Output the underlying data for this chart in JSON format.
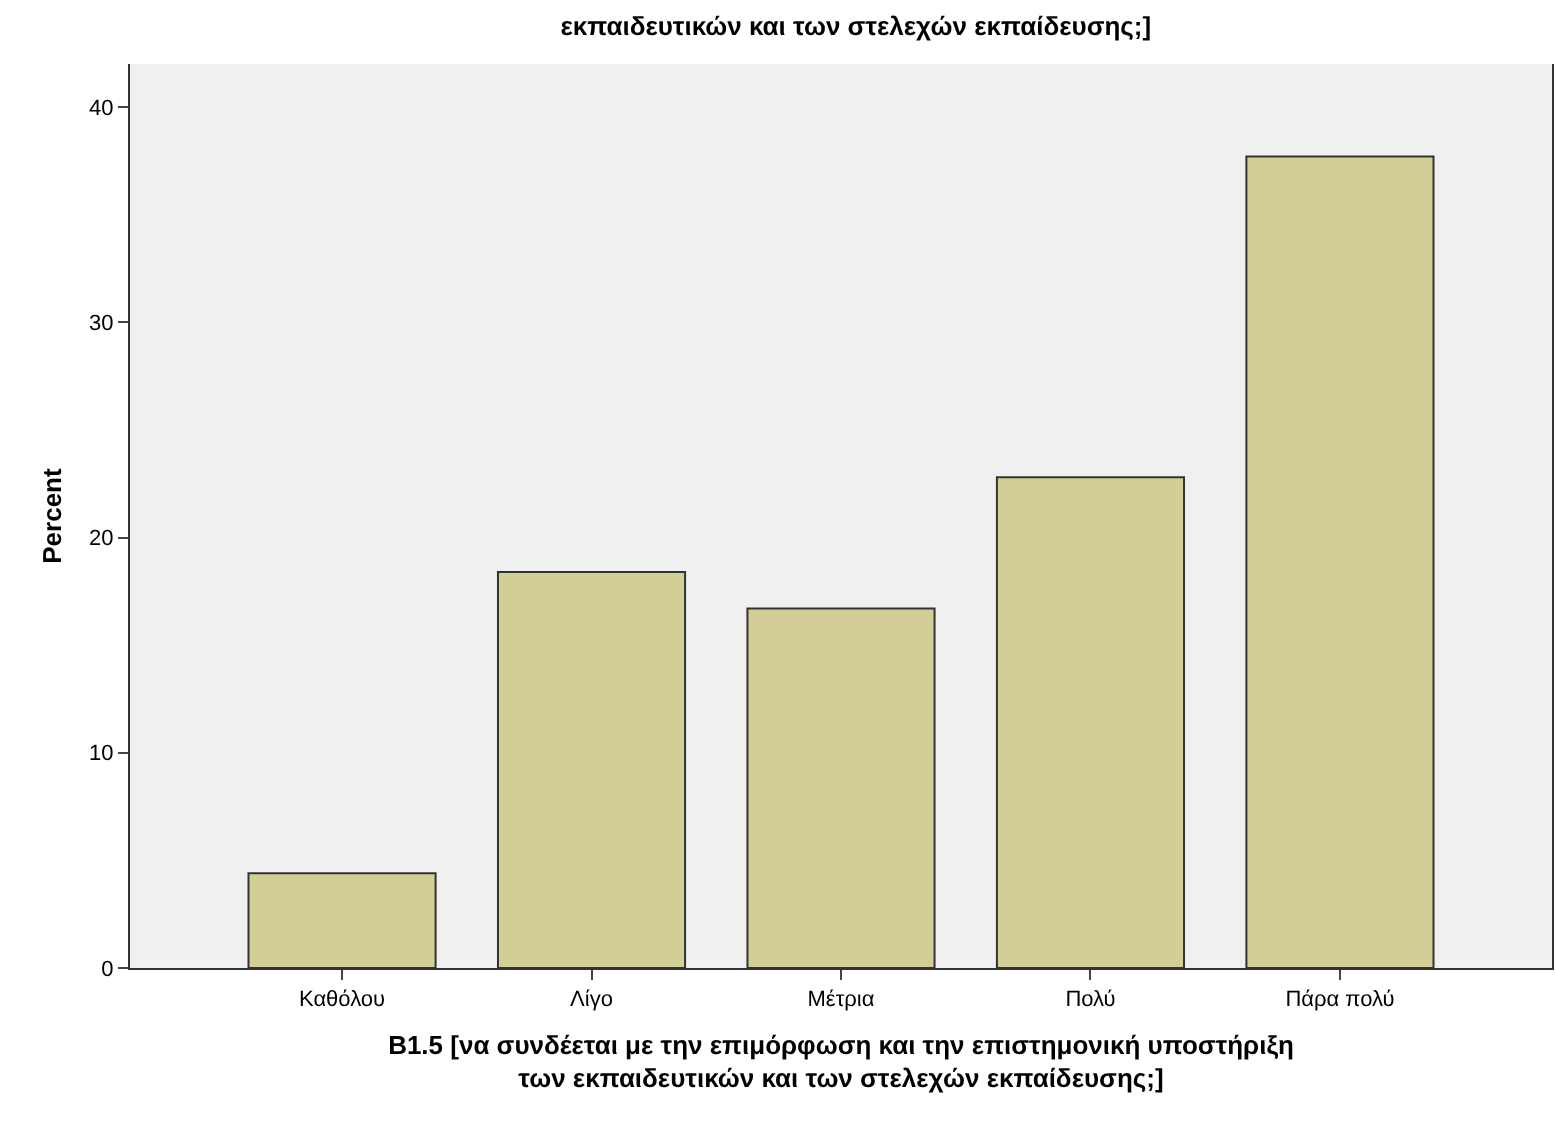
{
  "chart_data": {
    "type": "bar",
    "title": "εκπαιδευτικών και των στελεχών εκπαίδευσης;]",
    "xlabel": "B1.5 [να συνδέεται με την επιμόρφωση και την επιστημονική υποστήριξη\nτων εκπαιδευτικών και των στελεχών εκπαίδευσης;]",
    "ylabel": "Percent",
    "categories": [
      "Καθόλου",
      "Λίγο",
      "Μέτρια",
      "Πολύ",
      "Πάρα πολύ"
    ],
    "values": [
      4.4,
      18.4,
      16.7,
      22.8,
      37.7
    ],
    "color": "#d3cd96",
    "ylim": [
      0,
      42
    ],
    "yticks": [
      0,
      10,
      20,
      30,
      40
    ],
    "grid": false
  }
}
